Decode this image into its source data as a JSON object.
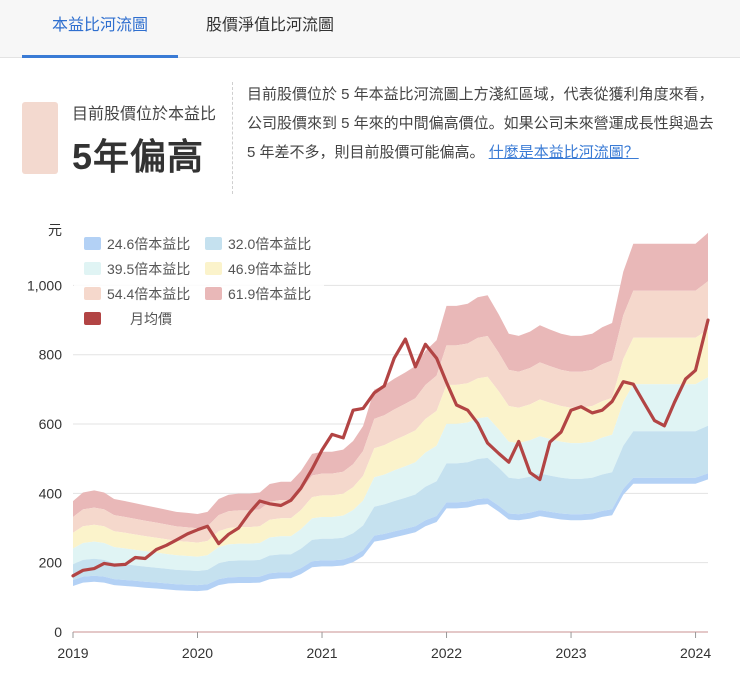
{
  "tabs": [
    {
      "label": "本益比河流圖",
      "active": true
    },
    {
      "label": "股價淨值比河流圖",
      "active": false
    }
  ],
  "status": {
    "label": "目前股價位於本益比",
    "value": "5年偏高",
    "color": "#f3d9cf"
  },
  "description": {
    "text": "目前股價位於 5 年本益比河流圖上方淺紅區域，代表從獲利角度來看，公司股價來到 5 年來的中間偏高價位。如果公司未來營運成長性與過去 5 年差不多，則目前股價可能偏高。",
    "link": "什麼是本益比河流圖？"
  },
  "chart_data": {
    "type": "area",
    "ylabel": "元",
    "ylim": [
      0,
      1180
    ],
    "yticks": [
      {
        "v": 0,
        "label": "0"
      },
      {
        "v": 200,
        "label": "200"
      },
      {
        "v": 400,
        "label": "400"
      },
      {
        "v": 600,
        "label": "600"
      },
      {
        "v": 800,
        "label": "800"
      },
      {
        "v": 1000,
        "label": "1,000"
      }
    ],
    "xlim": [
      2019.0,
      2024.1
    ],
    "xticks": [
      {
        "v": 2019,
        "label": "2019"
      },
      {
        "v": 2020,
        "label": "2020"
      },
      {
        "v": 2021,
        "label": "2021"
      },
      {
        "v": 2022,
        "label": "2022"
      },
      {
        "v": 2023,
        "label": "2023"
      },
      {
        "v": 2024,
        "label": "2024"
      }
    ],
    "legend": [
      {
        "name": "24.6倍本益比",
        "color": "#b3d1f5"
      },
      {
        "name": "32.0倍本益比",
        "color": "#c5e1ef"
      },
      {
        "name": "39.5倍本益比",
        "color": "#e0f4f4"
      },
      {
        "name": "46.9倍本益比",
        "color": "#fbf3cb"
      },
      {
        "name": "54.4倍本益比",
        "color": "#f5d8cc"
      },
      {
        "name": "61.9倍本益比",
        "color": "#e9b8b8"
      },
      {
        "name": "月均價",
        "color": "#b24444"
      }
    ],
    "band_multiples": [
      24.6,
      32.0,
      39.5,
      46.9,
      54.4,
      61.9
    ],
    "eps_x": [
      2019.0,
      2019.08,
      2019.17,
      2019.25,
      2019.33,
      2019.42,
      2019.5,
      2019.58,
      2019.67,
      2019.75,
      2019.83,
      2019.92,
      2020.0,
      2020.08,
      2020.17,
      2020.25,
      2020.33,
      2020.42,
      2020.5,
      2020.58,
      2020.67,
      2020.75,
      2020.83,
      2020.92,
      2021.0,
      2021.08,
      2021.17,
      2021.25,
      2021.33,
      2021.42,
      2021.5,
      2021.58,
      2021.67,
      2021.75,
      2021.83,
      2021.92,
      2022.0,
      2022.08,
      2022.17,
      2022.25,
      2022.33,
      2022.42,
      2022.5,
      2022.58,
      2022.67,
      2022.75,
      2022.83,
      2022.92,
      2023.0,
      2023.08,
      2023.17,
      2023.25,
      2023.33,
      2023.42,
      2023.5,
      2023.58,
      2023.67,
      2023.75,
      2023.83,
      2023.92,
      2024.0,
      2024.1
    ],
    "eps": [
      6.1,
      6.5,
      6.6,
      6.5,
      6.2,
      6.1,
      6.0,
      5.9,
      5.8,
      5.7,
      5.6,
      5.55,
      5.5,
      5.6,
      6.2,
      6.4,
      6.45,
      6.45,
      6.5,
      6.9,
      7.0,
      7.0,
      7.5,
      8.3,
      8.4,
      8.4,
      8.5,
      8.9,
      9.6,
      11.3,
      11.5,
      11.8,
      12.1,
      12.4,
      13.1,
      13.6,
      15.2,
      15.2,
      15.3,
      15.6,
      15.7,
      14.8,
      13.9,
      13.8,
      14.0,
      14.3,
      14.1,
      13.9,
      13.8,
      13.8,
      13.9,
      14.2,
      14.4,
      16.8,
      18.1,
      18.1,
      18.1,
      18.1,
      18.1,
      18.1,
      18.1,
      18.6
    ],
    "price_x": [
      2019.0,
      2019.08,
      2019.17,
      2019.25,
      2019.33,
      2019.42,
      2019.5,
      2019.58,
      2019.67,
      2019.75,
      2019.83,
      2019.92,
      2020.0,
      2020.08,
      2020.17,
      2020.25,
      2020.33,
      2020.42,
      2020.5,
      2020.58,
      2020.67,
      2020.75,
      2020.83,
      2020.92,
      2021.0,
      2021.08,
      2021.17,
      2021.25,
      2021.33,
      2021.42,
      2021.5,
      2021.58,
      2021.67,
      2021.75,
      2021.83,
      2021.92,
      2022.0,
      2022.08,
      2022.17,
      2022.25,
      2022.33,
      2022.42,
      2022.5,
      2022.58,
      2022.67,
      2022.75,
      2022.83,
      2022.92,
      2023.0,
      2023.08,
      2023.17,
      2023.25,
      2023.33,
      2023.42,
      2023.5,
      2023.58,
      2023.67,
      2023.75,
      2023.83,
      2023.92,
      2024.0,
      2024.1
    ],
    "price": [
      162,
      178,
      183,
      198,
      193,
      195,
      215,
      212,
      238,
      250,
      265,
      283,
      295,
      305,
      255,
      282,
      300,
      345,
      378,
      370,
      365,
      380,
      415,
      470,
      525,
      570,
      560,
      640,
      645,
      690,
      710,
      790,
      845,
      765,
      830,
      790,
      720,
      655,
      640,
      602,
      545,
      515,
      490,
      550,
      460,
      440,
      548,
      577,
      640,
      650,
      632,
      640,
      665,
      722,
      715,
      665,
      610,
      595,
      662,
      730,
      755,
      900
    ]
  }
}
